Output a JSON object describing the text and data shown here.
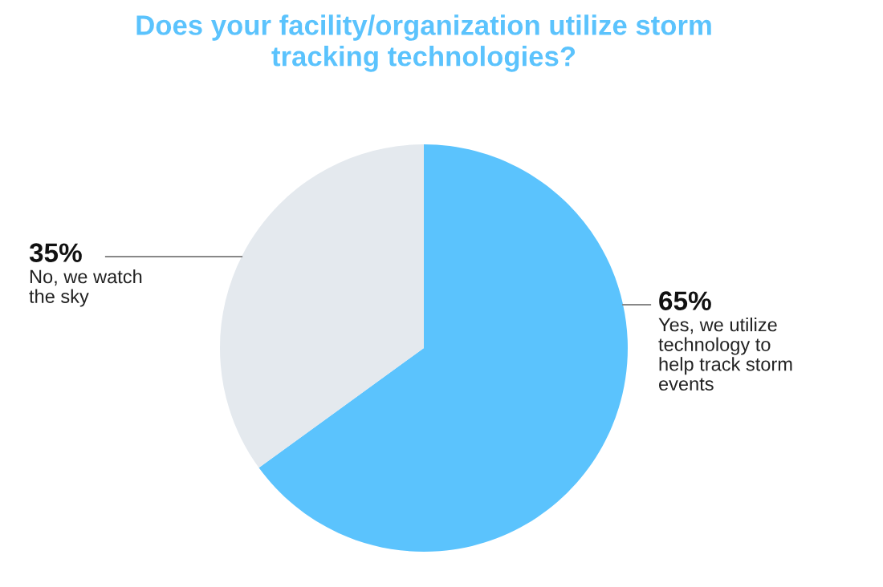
{
  "chart_data": {
    "type": "pie",
    "title": "Does your facility/organization utilize storm\ntracking technologies?",
    "categories": [
      "Yes, we utilize\ntechnology to\nhelp track storm\nevents",
      "No, we watch\nthe sky"
    ],
    "values": [
      65,
      35
    ],
    "value_labels": [
      "65%",
      "35%"
    ],
    "colors": [
      "#5bc3fd",
      "#e4e9ee"
    ]
  }
}
